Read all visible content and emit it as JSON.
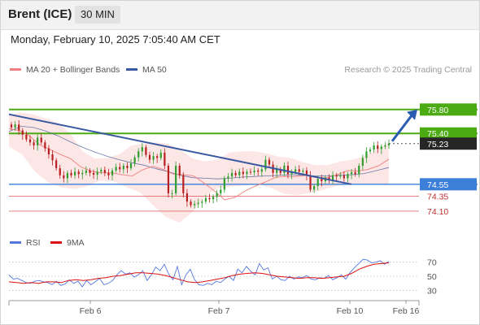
{
  "header": {
    "title": "Brent (ICE)",
    "timeframe": "30 MIN"
  },
  "datetime": "Monday, February 10, 2025 7:05:40 AM CET",
  "legend": {
    "ma20_label": "MA 20 + Bollinger Bands",
    "ma50_label": "MA 50",
    "rsi_label": "RSI",
    "rsi_ma_label": "9MA"
  },
  "watermark": "Research © 2025 Trading Central",
  "colors": {
    "up_candle": "#2f9e2f",
    "down_candle": "#b82020",
    "resistance": "#4caa12",
    "support": "#3b7fd9",
    "target": "#e06060",
    "ma20": "#f08080",
    "ma50": "#5a6e9e",
    "trendline": "#3858a0",
    "bollinger_fill": "#fde2e2",
    "rsi": "#5577dd",
    "rsi_ma": "#dd1111"
  },
  "chart_data": [
    {
      "type": "candlestick",
      "ylim": [
        73.8,
        76.3
      ],
      "x_tick_labels": [
        "Feb 6",
        "Feb 7",
        "Feb 10",
        "Feb 16"
      ],
      "levels": [
        {
          "value": 75.8,
          "label": "75.80",
          "kind": "resistance"
        },
        {
          "value": 75.4,
          "label": "75.40",
          "kind": "resistance"
        },
        {
          "value": 75.23,
          "label": "75.23",
          "kind": "last-price"
        },
        {
          "value": 74.55,
          "label": "74.55",
          "kind": "support"
        },
        {
          "value": 74.35,
          "label": "74.35",
          "kind": "target"
        },
        {
          "value": 74.1,
          "label": "74.10",
          "kind": "target"
        }
      ],
      "close_path": [
        75.5,
        75.55,
        75.45,
        75.38,
        75.3,
        75.25,
        75.2,
        75.33,
        75.25,
        75.15,
        75.05,
        74.95,
        74.82,
        74.7,
        74.65,
        74.74,
        74.7,
        74.76,
        74.72,
        74.74,
        74.78,
        74.74,
        74.71,
        74.76,
        74.79,
        74.74,
        74.7,
        74.78,
        74.84,
        74.8,
        74.86,
        74.82,
        74.9,
        75.0,
        75.1,
        75.17,
        75.04,
        74.96,
        75.02,
        74.99,
        75.08,
        74.86,
        74.4,
        74.4,
        74.86,
        74.7,
        74.4,
        74.26,
        74.2,
        74.22,
        74.24,
        74.26,
        74.32,
        74.3,
        74.34,
        74.4,
        74.46,
        74.65,
        74.68,
        74.74,
        74.7,
        74.76,
        74.72,
        74.76,
        74.75,
        74.78,
        74.76,
        74.8,
        74.96,
        74.88,
        74.74,
        74.8,
        74.74,
        74.86,
        74.72,
        74.76,
        74.8,
        74.76,
        74.78,
        74.7,
        74.46,
        74.52,
        74.64,
        74.6,
        74.66,
        74.62,
        74.7,
        74.68,
        74.7,
        74.65,
        74.72,
        74.75,
        74.72,
        74.86,
        74.99,
        75.1,
        75.13,
        75.2,
        75.14,
        75.18,
        75.2,
        75.23
      ],
      "ma20_path": [
        75.48,
        75.45,
        75.36,
        75.21,
        75.13,
        75.05,
        74.98,
        74.84,
        74.77,
        74.74,
        74.74,
        74.71,
        74.69,
        74.79,
        74.85,
        74.8,
        74.72,
        74.71,
        74.69,
        74.57,
        74.44,
        74.29,
        74.33,
        74.44,
        74.52,
        74.59,
        74.67,
        74.68,
        74.68,
        74.7,
        74.66,
        74.66,
        74.71,
        74.78,
        74.77,
        74.8,
        74.86,
        74.97
      ],
      "ma50_path": [
        75.43,
        75.52,
        75.5,
        75.44,
        75.36,
        75.26,
        75.17,
        75.09,
        75.02,
        74.96,
        74.91,
        74.87,
        74.81,
        74.76,
        74.7,
        74.66,
        74.65,
        74.64,
        74.65,
        74.67,
        74.68,
        74.69,
        74.7,
        74.71,
        74.7,
        74.69,
        74.69,
        74.7,
        74.71,
        74.73,
        74.78,
        74.83
      ],
      "bollinger_upper_path": [
        75.71,
        75.75,
        75.72,
        75.65,
        75.58,
        75.4,
        75.1,
        74.98,
        74.99,
        75.05,
        75.2,
        75.23,
        75.25,
        75.23,
        75.12,
        74.98,
        74.93,
        74.96,
        75.08,
        75.1,
        75.1,
        75.07,
        75.01,
        74.99,
        74.92,
        74.87,
        74.87,
        74.93,
        74.96,
        75.02,
        75.12,
        75.26
      ],
      "bollinger_lower_path": [
        75.18,
        75.05,
        74.76,
        74.58,
        74.5,
        74.47,
        74.52,
        74.61,
        74.6,
        74.5,
        74.42,
        74.2,
        74.0,
        73.91,
        74.08,
        74.36,
        74.49,
        74.51,
        74.53,
        74.55,
        74.49,
        74.39,
        74.37,
        74.4,
        74.46,
        74.52,
        74.55,
        74.55,
        74.55,
        74.55
      ],
      "trendline": {
        "from": 75.72,
        "to": 74.55
      },
      "forecast_arrow": {
        "from": 75.23,
        "to": 75.8
      }
    },
    {
      "type": "line",
      "title": "RSI",
      "ylim": [
        20,
        80
      ],
      "y_ticks": [
        70,
        50,
        30
      ],
      "series": [
        {
          "name": "RSI",
          "values": [
            52,
            46,
            47,
            44,
            41,
            40,
            43,
            44,
            42,
            41,
            38,
            43,
            37,
            39,
            45,
            40,
            43,
            35,
            44,
            38,
            42,
            47,
            38,
            40,
            44,
            52,
            58,
            53,
            55,
            49,
            52,
            58,
            44,
            52,
            63,
            58,
            67,
            53,
            45,
            64,
            38,
            52,
            60,
            45,
            38,
            37,
            40,
            38,
            43,
            41,
            46,
            50,
            44,
            60,
            55,
            64,
            57,
            52,
            68,
            59,
            62,
            46,
            50,
            45,
            44,
            50,
            46,
            49,
            48,
            51,
            46,
            45,
            48,
            47,
            51,
            45,
            48,
            52,
            46,
            55,
            62,
            68,
            74,
            73,
            69,
            70,
            72,
            67,
            71
          ]
        },
        {
          "name": "9MA",
          "values": [
            42,
            41,
            40,
            41,
            40,
            42,
            42,
            41,
            44,
            45,
            44,
            45,
            47,
            48,
            50,
            51,
            53,
            55,
            55,
            54,
            53,
            51,
            48,
            45,
            42,
            41,
            42,
            44,
            46,
            48,
            51,
            53,
            54,
            55,
            54,
            52,
            50,
            49,
            48,
            47,
            48,
            48,
            47,
            48,
            49,
            50,
            54,
            60,
            64,
            67,
            68,
            69
          ]
        }
      ]
    }
  ]
}
